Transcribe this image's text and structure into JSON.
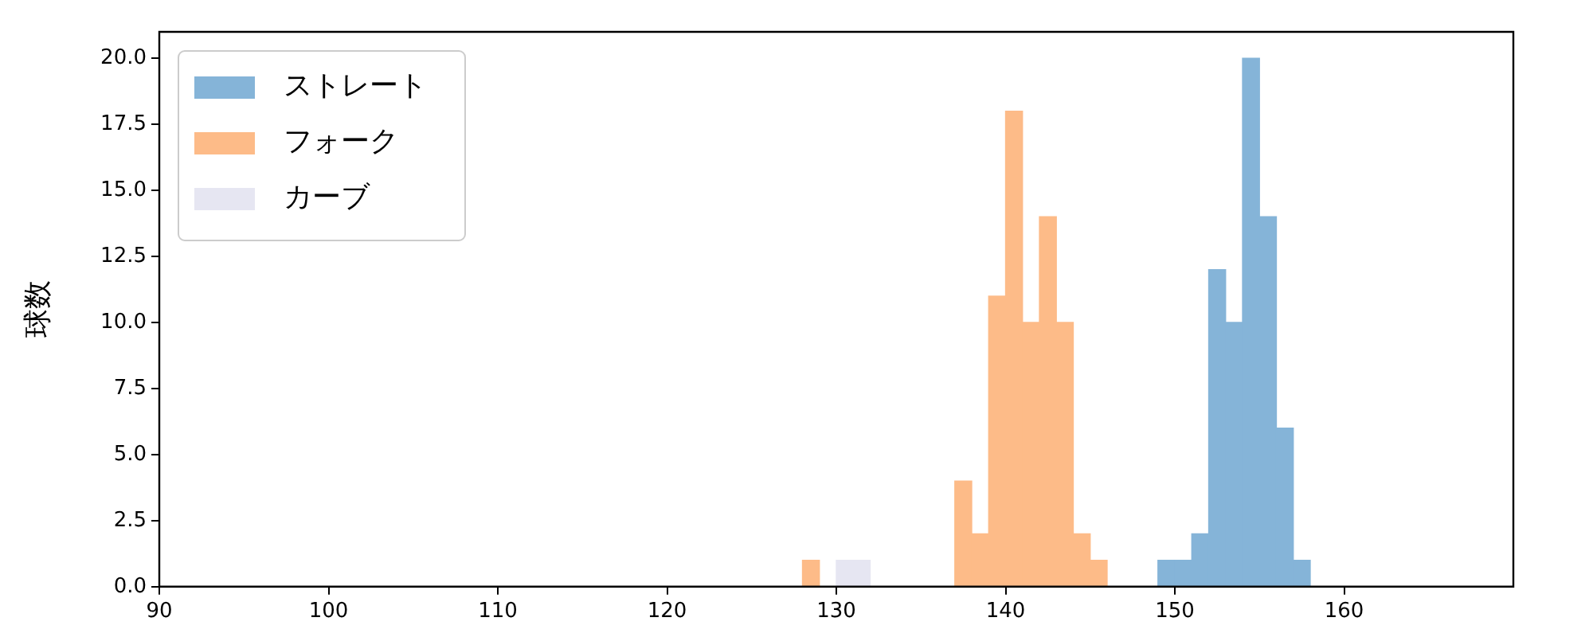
{
  "chart_data": {
    "type": "histogram",
    "ylabel": "球数",
    "legend": "top left",
    "grid": false,
    "xlim": [
      90,
      170
    ],
    "xticks": [
      90,
      100,
      110,
      120,
      130,
      140,
      150,
      160
    ],
    "ylim": [
      0,
      21
    ],
    "yticks": [
      {
        "value": 0,
        "label": "0.0"
      },
      {
        "value": 2.5,
        "label": "2.5"
      },
      {
        "value": 5,
        "label": "5.0"
      },
      {
        "value": 7.5,
        "label": "7.5"
      },
      {
        "value": 10,
        "label": "10.0"
      },
      {
        "value": 12.5,
        "label": "12.5"
      },
      {
        "value": 15,
        "label": "15.0"
      },
      {
        "value": 17.5,
        "label": "17.5"
      },
      {
        "value": 20,
        "label": "20.0"
      }
    ],
    "bins": [
      128,
      129,
      130,
      131,
      132,
      133,
      134,
      135,
      136,
      137,
      138,
      139,
      140,
      141,
      142,
      143,
      144,
      145,
      146,
      147,
      148,
      149,
      150,
      151,
      152,
      153,
      154,
      155,
      156,
      157,
      158
    ],
    "series": [
      {
        "name": "ストレート",
        "color": "#85b4d8",
        "values": [
          0,
          0,
          0,
          0,
          0,
          0,
          0,
          0,
          0,
          0,
          0,
          0,
          0,
          0,
          0,
          0,
          0,
          0,
          0,
          0,
          0,
          1,
          1,
          2,
          12,
          10,
          20,
          14,
          6,
          1
        ]
      },
      {
        "name": "フォーク",
        "color": "#fdbb88",
        "values": [
          1,
          0,
          0,
          0,
          0,
          0,
          0,
          0,
          0,
          4,
          2,
          11,
          18,
          10,
          14,
          10,
          2,
          1,
          0,
          0,
          0,
          0,
          0,
          0,
          0,
          0,
          0,
          0,
          0,
          0
        ]
      },
      {
        "name": "カーブ",
        "color": "#e6e6f2",
        "values": [
          0,
          0,
          1,
          1,
          0,
          0,
          0,
          0,
          0,
          0,
          0,
          0,
          0,
          0,
          0,
          0,
          0,
          0,
          0,
          0,
          0,
          0,
          0,
          0,
          0,
          0,
          0,
          0,
          0,
          0
        ]
      }
    ]
  }
}
